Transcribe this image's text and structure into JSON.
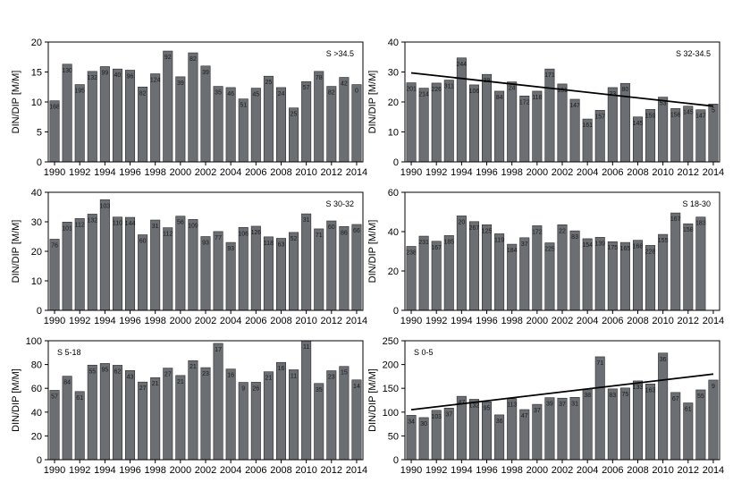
{
  "chart_data": [
    {
      "type": "bar",
      "annotation": "S >34.5",
      "ylabel": "DIN/DIP [M/M]",
      "ylim": [
        0,
        20
      ],
      "yticks": [
        0,
        5,
        10,
        15,
        20
      ],
      "years": [
        1990,
        1991,
        1992,
        1993,
        1994,
        1995,
        1996,
        1997,
        1998,
        1999,
        2000,
        2001,
        2002,
        2003,
        2004,
        2005,
        2006,
        2007,
        2008,
        2009,
        2010,
        2011,
        2012,
        2013,
        2014
      ],
      "xticks": [
        "1990",
        "1992",
        "1994",
        "1996",
        "1998",
        "2000",
        "2002",
        "2004",
        "2006",
        "2008",
        "2010",
        "2012",
        "2014"
      ],
      "values": [
        10.2,
        16.3,
        12.9,
        15.1,
        15.9,
        15.5,
        15.3,
        12.5,
        14.7,
        18.5,
        14.2,
        18.2,
        16.0,
        12.6,
        12.4,
        10.5,
        12.3,
        14.3,
        12.4,
        9.0,
        13.4,
        15.1,
        12.6,
        14.1,
        12.9
      ],
      "bar_labels": [
        "168",
        "130",
        "195",
        "132",
        "99",
        "40",
        "96",
        "82",
        "124",
        "92",
        "39",
        "82",
        "39",
        "35",
        "46",
        "51",
        "45",
        "25",
        "24",
        "25",
        "57",
        "78",
        "82",
        "42",
        "0"
      ],
      "trend": null
    },
    {
      "type": "bar",
      "annotation": "S 32-34.5",
      "ylabel": "DIN/DIP [M/M]",
      "ylim": [
        0,
        40
      ],
      "yticks": [
        0,
        10,
        20,
        30,
        40
      ],
      "years": [
        1990,
        1991,
        1992,
        1993,
        1994,
        1995,
        1996,
        1997,
        1998,
        1999,
        2000,
        2001,
        2002,
        2003,
        2004,
        2005,
        2006,
        2007,
        2008,
        2009,
        2010,
        2011,
        2012,
        2013,
        2014
      ],
      "xticks": [
        "1990",
        "1992",
        "1994",
        "1996",
        "1998",
        "2000",
        "2002",
        "2004",
        "2006",
        "2008",
        "2010",
        "2012",
        "2014"
      ],
      "values": [
        26.4,
        24.6,
        26.3,
        27.3,
        34.7,
        25.7,
        29.2,
        23.6,
        26.7,
        22.0,
        23.6,
        31.0,
        26.0,
        20.9,
        14.3,
        17.2,
        24.8,
        26.2,
        15.0,
        17.5,
        21.6,
        17.8,
        18.6,
        17.4,
        19.3
      ],
      "bar_labels": [
        "201",
        "214",
        "226",
        "311",
        "244",
        "106",
        "39",
        "84",
        "24",
        "172",
        "118",
        "171",
        "131",
        "147",
        "161",
        "157",
        "23",
        "80",
        "145",
        "159",
        "53",
        "156",
        "145",
        "147",
        "5"
      ],
      "trend": [
        29.7,
        18.6
      ]
    },
    {
      "type": "bar",
      "annotation": "S 30-32",
      "ylabel": "DIN/DIP [M/M]",
      "ylim": [
        0,
        40
      ],
      "yticks": [
        0,
        10,
        20,
        30,
        40
      ],
      "years": [
        1990,
        1991,
        1992,
        1993,
        1994,
        1995,
        1996,
        1997,
        1998,
        1999,
        2000,
        2001,
        2002,
        2003,
        2004,
        2005,
        2006,
        2007,
        2008,
        2009,
        2010,
        2011,
        2012,
        2013,
        2014
      ],
      "xticks": [
        "1990",
        "1992",
        "1994",
        "1996",
        "1998",
        "2000",
        "2002",
        "2004",
        "2006",
        "2008",
        "2010",
        "2012",
        "2014"
      ],
      "values": [
        24.1,
        29.9,
        31.1,
        32.6,
        37.5,
        31.6,
        31.5,
        25.6,
        30.6,
        28.0,
        31.9,
        30.8,
        25.0,
        26.7,
        23.0,
        28.1,
        28.5,
        24.9,
        24.4,
        26.4,
        32.7,
        27.6,
        30.3,
        28.4,
        29.1
      ],
      "bar_labels": [
        "76",
        "101",
        "112",
        "132",
        "103",
        "110",
        "144",
        "60",
        "31",
        "112",
        "56",
        "109",
        "93",
        "77",
        "93",
        "106",
        "126",
        "118",
        "63",
        "52",
        "31",
        "71",
        "60",
        "86",
        "66"
      ],
      "trend": null
    },
    {
      "type": "bar",
      "annotation": "S 18-30",
      "ylabel": "DIN/DIP [M/M]",
      "ylim": [
        0,
        60
      ],
      "yticks": [
        0,
        20,
        40,
        60
      ],
      "years": [
        1990,
        1991,
        1992,
        1993,
        1994,
        1995,
        1996,
        1997,
        1998,
        1999,
        2000,
        2001,
        2002,
        2003,
        2004,
        2005,
        2006,
        2007,
        2008,
        2009,
        2010,
        2011,
        2012,
        2013,
        2014
      ],
      "xticks": [
        "1990",
        "1992",
        "1994",
        "1996",
        "1998",
        "2000",
        "2002",
        "2004",
        "2006",
        "2008",
        "2010",
        "2012",
        "2014"
      ],
      "values": [
        32.5,
        37.7,
        35.1,
        38.0,
        48.0,
        45.1,
        43.5,
        38.9,
        33.6,
        36.9,
        43.0,
        34.3,
        43.5,
        40.4,
        36.4,
        37.1,
        34.9,
        34.5,
        35.6,
        33.0,
        38.6,
        49.5,
        44.0,
        47.4,
        0
      ],
      "bar_labels": [
        "238",
        "231",
        "167",
        "185",
        "20",
        "267",
        "125",
        "119",
        "184",
        "37",
        "172",
        "225",
        "22",
        "83",
        "154",
        "139",
        "175",
        "165",
        "168",
        "228",
        "155",
        "167",
        "158",
        "183",
        ""
      ],
      "trend": null
    },
    {
      "type": "bar",
      "annotation": "S 5-18",
      "ylabel": "DIN/DIP [M/M]",
      "ylim": [
        0,
        100
      ],
      "yticks": [
        0,
        20,
        40,
        60,
        80,
        100
      ],
      "years": [
        1990,
        1991,
        1992,
        1993,
        1994,
        1995,
        1996,
        1997,
        1998,
        1999,
        2000,
        2001,
        2002,
        2003,
        2004,
        2005,
        2006,
        2007,
        2008,
        2009,
        2010,
        2011,
        2012,
        2013,
        2014
      ],
      "xticks": [
        "1990",
        "1992",
        "1994",
        "1996",
        "1998",
        "2000",
        "2002",
        "2004",
        "2006",
        "2008",
        "2010",
        "2012",
        "2014"
      ],
      "values": [
        58.3,
        70.2,
        57.3,
        79.5,
        80.9,
        79.4,
        75.0,
        65.3,
        69.0,
        77.0,
        70.8,
        83.3,
        77.4,
        97.8,
        76.2,
        65.0,
        65.1,
        73.9,
        81.8,
        75.6,
        99.9,
        64.1,
        74.8,
        78.4,
        67.1
      ],
      "bar_labels": [
        "57",
        "84",
        "61",
        "55",
        "95",
        "62",
        "43",
        "27",
        "21",
        "27",
        "21",
        "21",
        "23",
        "17",
        "16",
        "9",
        "26",
        "21",
        "16",
        "11",
        "11",
        "35",
        "23",
        "15",
        "14"
      ],
      "trend": null
    },
    {
      "type": "bar",
      "annotation": "S 0-5",
      "ylabel": "DIN/DIP [M/M]",
      "ylim": [
        0,
        250
      ],
      "yticks": [
        0,
        50,
        100,
        150,
        200,
        250
      ],
      "years": [
        1990,
        1991,
        1992,
        1993,
        1994,
        1995,
        1996,
        1997,
        1998,
        1999,
        2000,
        2001,
        2002,
        2003,
        2004,
        2005,
        2006,
        2007,
        2008,
        2009,
        2010,
        2011,
        2012,
        2013,
        2014
      ],
      "xticks": [
        "1990",
        "1992",
        "1994",
        "1996",
        "1998",
        "2000",
        "2002",
        "2004",
        "2006",
        "2008",
        "2010",
        "2012",
        "2014"
      ],
      "values": [
        93.3,
        88.5,
        103.8,
        108.4,
        133.2,
        126.9,
        121.6,
        94.2,
        128.4,
        105.3,
        116.3,
        130.4,
        129.3,
        131.0,
        148.8,
        216.3,
        148.8,
        150.7,
        165.6,
        159.2,
        224.1,
        141.3,
        119.3,
        146.7,
        167.4
      ],
      "bar_labels": [
        "34",
        "30",
        "103",
        "37",
        "47",
        "132",
        "95",
        "36",
        "113",
        "47",
        "37",
        "39",
        "37",
        "31",
        "38",
        "71",
        "83",
        "75",
        "133",
        "163",
        "36",
        "67",
        "61",
        "55",
        "9"
      ],
      "trend": [
        105,
        180
      ]
    }
  ]
}
